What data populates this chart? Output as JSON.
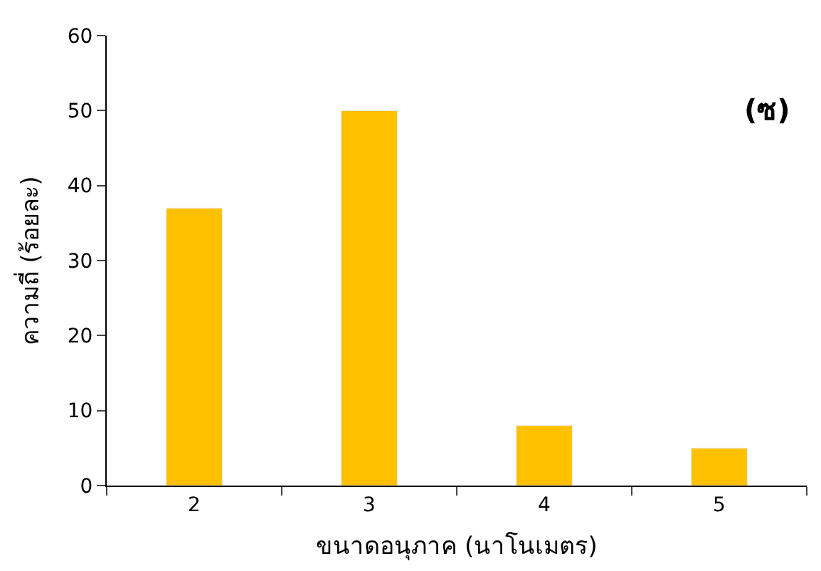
{
  "chart_data": {
    "type": "bar",
    "categories": [
      "2",
      "3",
      "4",
      "5"
    ],
    "values": [
      37,
      50,
      8,
      5
    ],
    "color": "#ffc000",
    "ylim": [
      0,
      60
    ],
    "yticks": [
      0,
      10,
      20,
      30,
      40,
      50,
      60
    ],
    "xlabel": "ขนาดอนุภาค (นาโนเมตร)",
    "ylabel": "ความถี่ (ร้อยละ)",
    "annotations": [
      "(ซ)"
    ]
  }
}
